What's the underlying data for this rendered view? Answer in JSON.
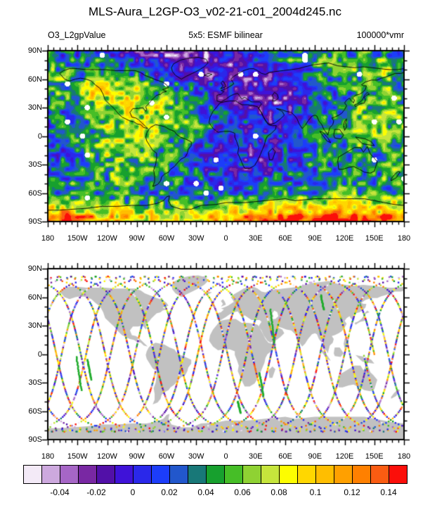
{
  "title": "MLS-Aura_L2GP-O3_v02-21-c01_2004d245.nc",
  "top_panel": {
    "left_label": "O3_L2gpValue",
    "center_label": "5x5: ESMF bilinear",
    "right_label": "100000*vmr"
  },
  "axes": {
    "lon_labels": [
      "180",
      "150W",
      "120W",
      "90W",
      "60W",
      "30W",
      "0",
      "30E",
      "60E",
      "90E",
      "120E",
      "150E",
      "180"
    ],
    "lat_labels": [
      "90N",
      "60N",
      "30N",
      "0",
      "30S",
      "60S",
      "90S"
    ],
    "lon_major_step_deg": 30,
    "lon_minor_step_deg": 6,
    "lat_major_step_deg": 30,
    "lat_minor_step_deg": 10
  },
  "colorbar": {
    "labels": [
      "-0.04",
      "-0.02",
      "0",
      "0.02",
      "0.04",
      "0.06",
      "0.08",
      "0.1",
      "0.12",
      "0.14"
    ],
    "levels": [
      -0.05,
      -0.04,
      -0.03,
      -0.02,
      -0.01,
      0,
      0.01,
      0.02,
      0.03,
      0.04,
      0.05,
      0.06,
      0.07,
      0.08,
      0.09,
      0.1,
      0.11,
      0.12,
      0.13,
      0.14
    ],
    "colors": [
      "#F3EAF7",
      "#CDA9DE",
      "#A666C6",
      "#7928A3",
      "#5210A8",
      "#3F12D8",
      "#2A28EA",
      "#1C3DFA",
      "#2257CC",
      "#187878",
      "#17A02E",
      "#46BE27",
      "#8FD233",
      "#C6E53C",
      "#FDFD00",
      "#FFD700",
      "#FFBE00",
      "#FFA000",
      "#FF8000",
      "#FA5C12",
      "#FB0F0A"
    ]
  },
  "map_style": {
    "land_fill_color": "#C1C1C1",
    "coastline_color": "#000000",
    "ocean_color": "#FFFFFF",
    "missing_data_color": "#FFFFFF",
    "frame_color": "#000000"
  },
  "chart_data": [
    {
      "type": "heatmap",
      "title": "O3_L2gpValue regridded to 5x5 grid (ESMF bilinear)",
      "units_label": "100000*vmr",
      "x_range": [
        -180,
        180
      ],
      "y_range": [
        -90,
        90
      ],
      "x_ticks": [
        "180",
        "150W",
        "120W",
        "90W",
        "60W",
        "30W",
        "0",
        "30E",
        "60E",
        "90E",
        "120E",
        "150E",
        "180"
      ],
      "y_ticks": [
        "90N",
        "60N",
        "30N",
        "0",
        "30S",
        "60S",
        "90S"
      ],
      "contour_level_min": -0.05,
      "contour_level_max": 0.15,
      "contour_level_step": 0.01,
      "n_color_levels": 21,
      "legend_position": "bottom colorbar",
      "grid": false,
      "description": "Filled-contour global map of MLS-Aura L2GP ozone (scaled by 100000) regridded with ESMF bilinear interpolation onto a 5x5 degree grid; noisy multi-colored field with high (orange/red) values along the Antarctic edge and over the eastern Pacific/Asia sector, low (blue/purple) patches over the Atlantic, Eurasia and high northern latitudes, scattered white cells of missing/out-of-range data, and black coastlines overlaid."
    },
    {
      "type": "scatter",
      "title": "MLS-Aura along-track observation locations for 2004 day 245",
      "x_range": [
        -180,
        180
      ],
      "y_range": [
        -90,
        90
      ],
      "x_ticks": [
        "180",
        "150W",
        "120W",
        "90W",
        "60W",
        "30W",
        "0",
        "30E",
        "60E",
        "90E",
        "120E",
        "150E",
        "180"
      ],
      "y_ticks": [
        "90N",
        "60N",
        "30N",
        "0",
        "30S",
        "60S",
        "90S"
      ],
      "marker": "small squares colored by ozone value using the shared 21-color palette",
      "n_orbit_tracks": 15,
      "orbit_max_latitude_deg": 82,
      "land_fill": "#C1C1C1",
      "description": "Ground tracks of ~15 sun-synchronous polar orbits crossing the map as steep dotted curves; dot colors span the full palette; continents filled light gray with no outline; a few dense solid-green track segments appear in the Pacific, South Atlantic and central Asia sectors."
    }
  ]
}
